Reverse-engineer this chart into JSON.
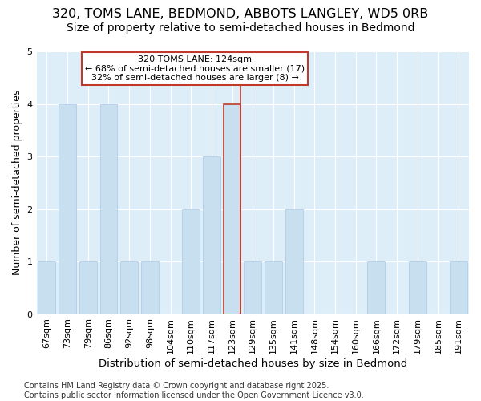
{
  "title": "320, TOMS LANE, BEDMOND, ABBOTS LANGLEY, WD5 0RB",
  "subtitle": "Size of property relative to semi-detached houses in Bedmond",
  "xlabel": "Distribution of semi-detached houses by size in Bedmond",
  "ylabel": "Number of semi-detached properties",
  "categories": [
    "67sqm",
    "73sqm",
    "79sqm",
    "86sqm",
    "92sqm",
    "98sqm",
    "104sqm",
    "110sqm",
    "117sqm",
    "123sqm",
    "129sqm",
    "135sqm",
    "141sqm",
    "148sqm",
    "154sqm",
    "160sqm",
    "166sqm",
    "172sqm",
    "179sqm",
    "185sqm",
    "191sqm"
  ],
  "values": [
    1,
    4,
    1,
    4,
    1,
    1,
    0,
    2,
    3,
    4,
    1,
    1,
    2,
    0,
    0,
    0,
    1,
    0,
    1,
    0,
    1
  ],
  "highlight_index": 9,
  "bar_color": "#c8dff0",
  "bar_edge_color": "#a8c8e8",
  "highlight_bar_color": "#c8dff0",
  "highlight_bar_edge_color": "#c0392b",
  "highlight_line_color": "#c0392b",
  "annotation_text": "320 TOMS LANE: 124sqm\n← 68% of semi-detached houses are smaller (17)\n32% of semi-detached houses are larger (8) →",
  "annotation_box_color": "white",
  "annotation_box_edge_color": "#c0392b",
  "ylim": [
    0,
    5
  ],
  "yticks": [
    0,
    1,
    2,
    3,
    4,
    5
  ],
  "fig_bg_color": "#ffffff",
  "plot_bg_color": "#deeef8",
  "grid_color": "#ffffff",
  "footer": "Contains HM Land Registry data © Crown copyright and database right 2025.\nContains public sector information licensed under the Open Government Licence v3.0.",
  "title_fontsize": 11.5,
  "subtitle_fontsize": 10,
  "xlabel_fontsize": 9.5,
  "ylabel_fontsize": 9,
  "tick_fontsize": 8,
  "footer_fontsize": 7
}
